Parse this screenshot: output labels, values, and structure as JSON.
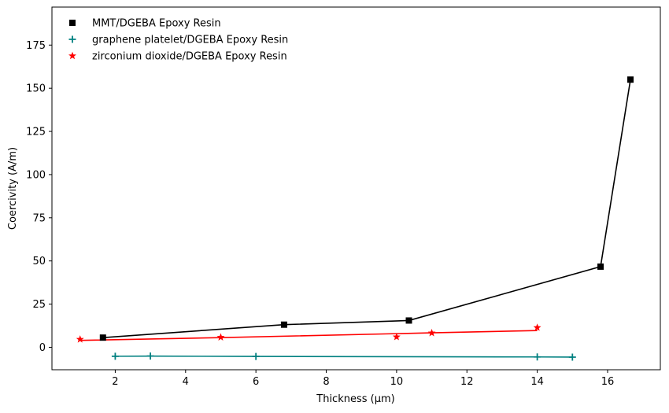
{
  "chart_data": {
    "type": "scatter",
    "xlabel": "Thickness (µm)",
    "ylabel": "Coercivity (A/m)",
    "xlim": [
      0.2,
      17.5
    ],
    "ylim": [
      -13,
      197
    ],
    "xticks": [
      2,
      4,
      6,
      8,
      10,
      12,
      14,
      16
    ],
    "yticks": [
      0,
      25,
      50,
      75,
      100,
      125,
      150,
      175
    ],
    "grid": false,
    "legend_position": "top-left",
    "series": [
      {
        "name": "MMT/DGEBA Epoxy Resin",
        "marker": "square",
        "color": "#000000",
        "points": [
          [
            1.65,
            5.6
          ],
          [
            6.8,
            13.1
          ],
          [
            10.35,
            15.5
          ],
          [
            15.8,
            46.7
          ],
          [
            16.65,
            155
          ]
        ],
        "line": [
          [
            1.65,
            5.6
          ],
          [
            6.8,
            13.1
          ],
          [
            10.35,
            15.5
          ],
          [
            15.8,
            46.7
          ],
          [
            16.65,
            155
          ]
        ]
      },
      {
        "name": "graphene platelet/DGEBA Epoxy Resin",
        "marker": "plus",
        "color": "#008080",
        "points": [
          [
            2,
            -5.2
          ],
          [
            3,
            -5.1
          ],
          [
            6,
            -5.3
          ],
          [
            14,
            -5.6
          ],
          [
            15,
            -5.7
          ]
        ],
        "line": [
          [
            2,
            -5.2
          ],
          [
            3,
            -5.1
          ],
          [
            6,
            -5.3
          ],
          [
            14,
            -5.6
          ],
          [
            15,
            -5.7
          ]
        ]
      },
      {
        "name": "zirconium dioxide/DGEBA Epoxy Resin",
        "marker": "star",
        "color": "#ff0000",
        "points": [
          [
            1,
            4.6
          ],
          [
            5,
            5.8
          ],
          [
            10,
            6.0
          ],
          [
            11,
            8.3
          ],
          [
            14,
            11.4
          ]
        ],
        "line": [
          [
            1,
            4.0
          ],
          [
            5,
            5.6
          ],
          [
            10,
            7.9
          ],
          [
            11,
            8.4
          ],
          [
            14,
            9.7
          ]
        ]
      }
    ]
  }
}
